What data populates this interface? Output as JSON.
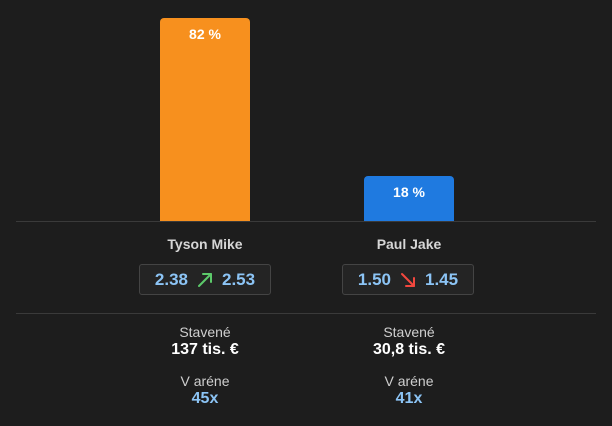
{
  "colors": {
    "background": "#1d1d1d",
    "left_bar": "#f7901e",
    "right_bar": "#1f7ae0",
    "odds_text": "#8cc4f5",
    "up_arrow": "#5cc96a",
    "down_arrow": "#f2473e"
  },
  "left": {
    "name": "Tyson Mike",
    "percent": "82 %",
    "share": 0.82,
    "odds_from": "2.38",
    "odds_to": "2.53",
    "trend_icon": "arrow-up-right-icon",
    "staked_label": "Stavené",
    "staked_value": "137 tis. €",
    "arena_label": "V aréne",
    "arena_value": "45x"
  },
  "right": {
    "name": "Paul Jake",
    "percent": "18 %",
    "share": 0.18,
    "odds_from": "1.50",
    "odds_to": "1.45",
    "trend_icon": "arrow-down-right-icon",
    "staked_label": "Stavené",
    "staked_value": "30,8 tis. €",
    "arena_label": "V aréne",
    "arena_value": "41x"
  }
}
